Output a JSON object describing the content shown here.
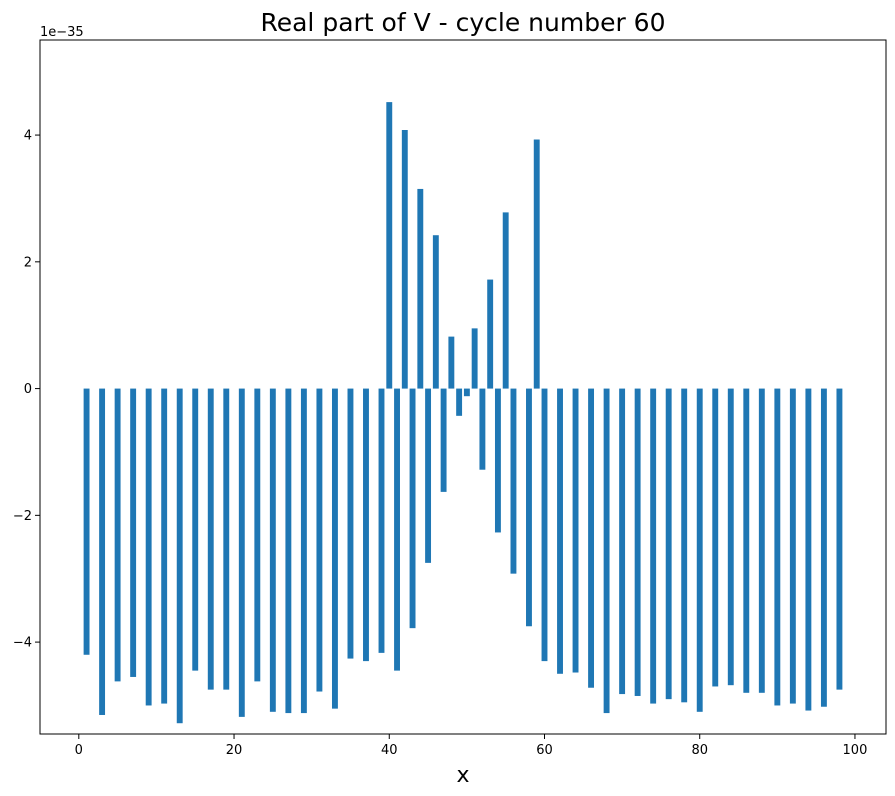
{
  "chart_data": {
    "type": "bar",
    "title": "Real part of V - cycle number 60",
    "xlabel": "x",
    "ylabel": "",
    "y_offset_label": "1e−35",
    "xlim": [
      -5,
      104
    ],
    "ylim": [
      -5.45,
      5.5
    ],
    "xticks": [
      0,
      20,
      40,
      60,
      80,
      100
    ],
    "yticks": [
      -4,
      -2,
      0,
      2,
      4
    ],
    "xtick_labels": [
      "0",
      "20",
      "40",
      "60",
      "80",
      "100"
    ],
    "ytick_labels": [
      "−4",
      "−2",
      "0",
      "2",
      "4"
    ],
    "bar_color": "#1f77b4",
    "grid": false,
    "bars": [
      {
        "x": 1,
        "y": -4.2
      },
      {
        "x": 3,
        "y": -5.15
      },
      {
        "x": 5,
        "y": -4.62
      },
      {
        "x": 7,
        "y": -4.55
      },
      {
        "x": 9,
        "y": -5.0
      },
      {
        "x": 11,
        "y": -4.97
      },
      {
        "x": 13,
        "y": -5.28
      },
      {
        "x": 15,
        "y": -4.45
      },
      {
        "x": 17,
        "y": -4.75
      },
      {
        "x": 19,
        "y": -4.75
      },
      {
        "x": 21,
        "y": -5.18
      },
      {
        "x": 23,
        "y": -4.62
      },
      {
        "x": 25,
        "y": -5.1
      },
      {
        "x": 27,
        "y": -5.12
      },
      {
        "x": 29,
        "y": -5.12
      },
      {
        "x": 31,
        "y": -4.78
      },
      {
        "x": 33,
        "y": -5.05
      },
      {
        "x": 35,
        "y": -4.26
      },
      {
        "x": 37,
        "y": -4.3
      },
      {
        "x": 39,
        "y": -4.17
      },
      {
        "x": 40,
        "y": 4.52
      },
      {
        "x": 41,
        "y": -4.45
      },
      {
        "x": 42,
        "y": 4.08
      },
      {
        "x": 43,
        "y": -3.78
      },
      {
        "x": 44,
        "y": 3.15
      },
      {
        "x": 45,
        "y": -2.75
      },
      {
        "x": 46,
        "y": 2.42
      },
      {
        "x": 47,
        "y": -1.63
      },
      {
        "x": 48,
        "y": 0.82
      },
      {
        "x": 49,
        "y": -0.43
      },
      {
        "x": 50,
        "y": -0.12
      },
      {
        "x": 51,
        "y": 0.95
      },
      {
        "x": 52,
        "y": -1.28
      },
      {
        "x": 53,
        "y": 1.72
      },
      {
        "x": 54,
        "y": -2.27
      },
      {
        "x": 55,
        "y": 2.78
      },
      {
        "x": 56,
        "y": -2.92
      },
      {
        "x": 58,
        "y": -3.75
      },
      {
        "x": 59,
        "y": 3.93
      },
      {
        "x": 60,
        "y": -4.3
      },
      {
        "x": 62,
        "y": -4.5
      },
      {
        "x": 64,
        "y": -4.48
      },
      {
        "x": 66,
        "y": -4.72
      },
      {
        "x": 68,
        "y": -5.12
      },
      {
        "x": 70,
        "y": -4.82
      },
      {
        "x": 72,
        "y": -4.85
      },
      {
        "x": 74,
        "y": -4.97
      },
      {
        "x": 76,
        "y": -4.9
      },
      {
        "x": 78,
        "y": -4.95
      },
      {
        "x": 80,
        "y": -5.1
      },
      {
        "x": 82,
        "y": -4.7
      },
      {
        "x": 84,
        "y": -4.68
      },
      {
        "x": 86,
        "y": -4.8
      },
      {
        "x": 88,
        "y": -4.8
      },
      {
        "x": 90,
        "y": -5.0
      },
      {
        "x": 92,
        "y": -4.97
      },
      {
        "x": 94,
        "y": -5.08
      },
      {
        "x": 96,
        "y": -5.02
      },
      {
        "x": 98,
        "y": -4.75
      }
    ]
  }
}
